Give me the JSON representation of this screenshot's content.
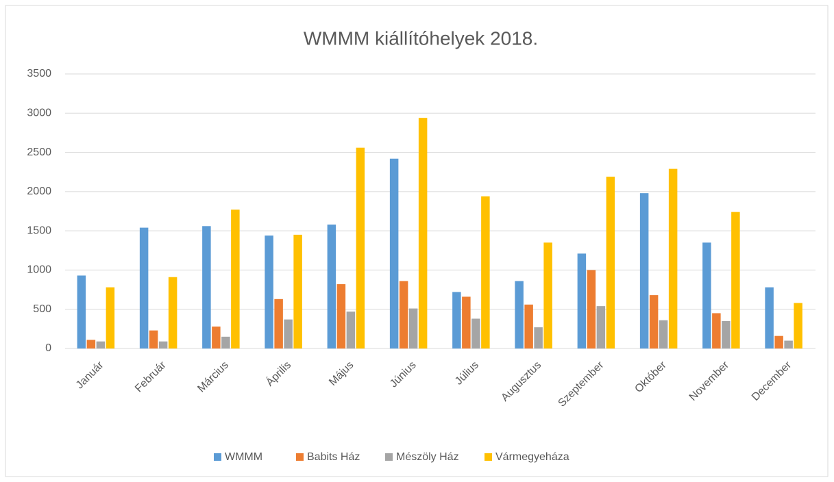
{
  "chart_data": {
    "type": "bar",
    "title": "WMMM kiállítóhelyek 2018.",
    "categories": [
      "Január",
      "Február",
      "Március",
      "Április",
      "Május",
      "Június",
      "Július",
      "Augusztus",
      "Szeptember",
      "Október",
      "November",
      "December"
    ],
    "series": [
      {
        "name": "WMMM",
        "color": "#5b9bd5",
        "values": [
          930,
          1540,
          1560,
          1440,
          1580,
          2420,
          720,
          860,
          1210,
          1980,
          1350,
          780
        ]
      },
      {
        "name": "Babits Ház",
        "color": "#ed7d31",
        "values": [
          110,
          230,
          280,
          630,
          820,
          860,
          660,
          560,
          1000,
          680,
          450,
          160
        ]
      },
      {
        "name": "Mészöly Ház",
        "color": "#a5a5a5",
        "values": [
          90,
          90,
          150,
          370,
          470,
          510,
          380,
          270,
          540,
          360,
          350,
          100
        ]
      },
      {
        "name": "Vármegyeháza",
        "color": "#ffc000",
        "values": [
          780,
          910,
          1770,
          1450,
          2560,
          2940,
          1940,
          1350,
          2190,
          2290,
          1740,
          580
        ]
      }
    ],
    "ylim": [
      0,
      3500
    ],
    "yticks": [
      0,
      500,
      1000,
      1500,
      2000,
      2500,
      3000,
      3500
    ],
    "grid": true,
    "legend": "bottom"
  }
}
